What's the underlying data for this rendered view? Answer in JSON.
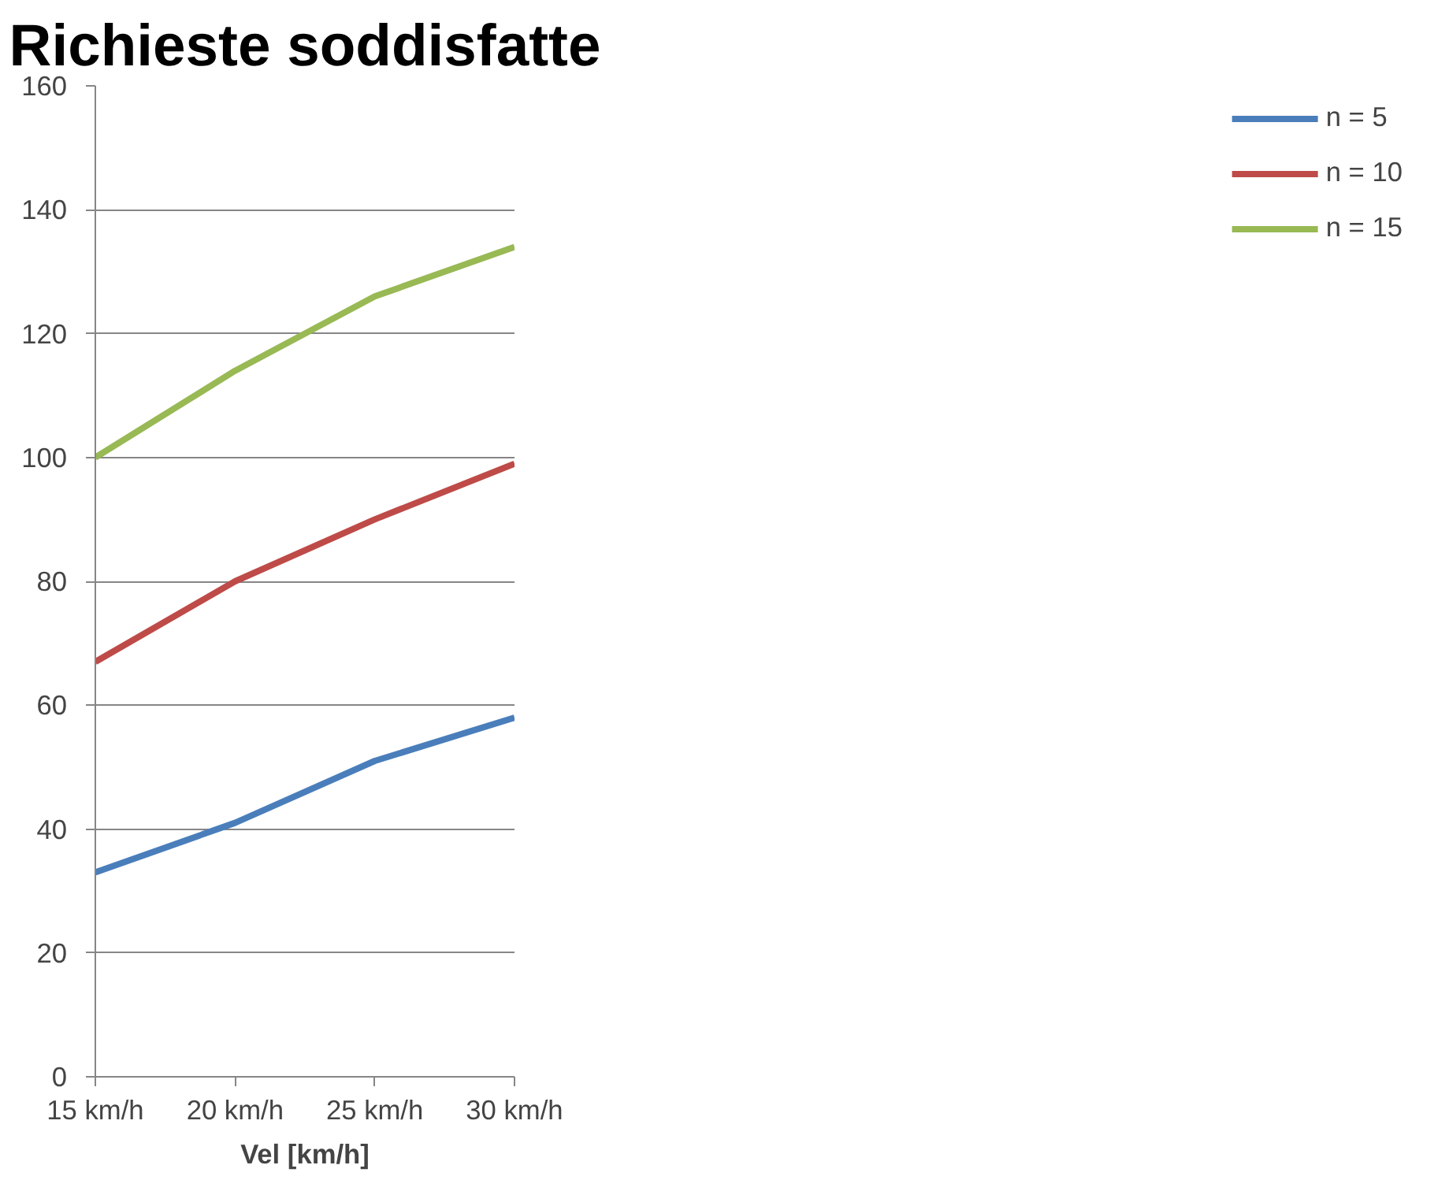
{
  "chart_data": {
    "type": "line",
    "title": "Richieste soddisfatte",
    "xlabel": "Vel [km/h]",
    "categories": [
      "15 km/h",
      "20 km/h",
      "25 km/h",
      "30 km/h"
    ],
    "series": [
      {
        "name": "n = 5",
        "color": "#4a7ebb",
        "values": [
          33,
          41,
          51,
          58
        ]
      },
      {
        "name": "n = 10",
        "color": "#be4b48",
        "values": [
          67,
          80,
          90,
          99
        ]
      },
      {
        "name": "n = 15",
        "color": "#98b954",
        "values": [
          100,
          114,
          126,
          134
        ]
      }
    ],
    "ylim": [
      0,
      160
    ],
    "yticks": [
      0,
      20,
      40,
      60,
      80,
      100,
      120,
      140,
      160
    ],
    "grid": "y",
    "legend": "right",
    "marker": "none",
    "line_style": "solid"
  }
}
